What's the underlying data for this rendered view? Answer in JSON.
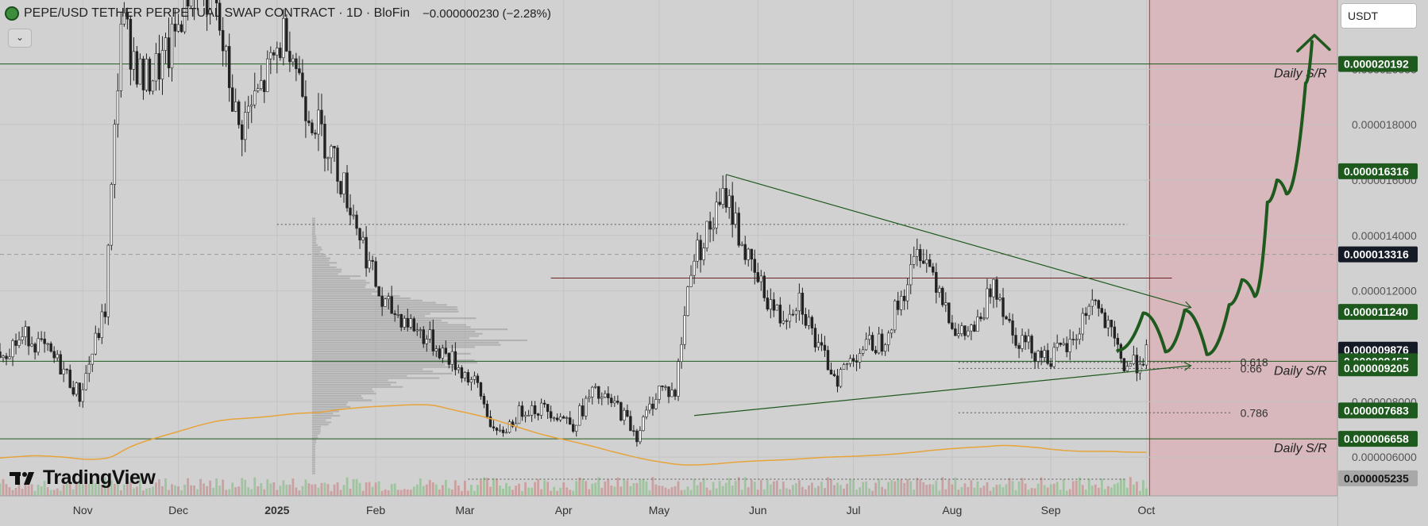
{
  "header": {
    "title": "PEPE/USD TETHER PERPETUAL SWAP CONTRACT · 1D · BloFin",
    "change": "−0.000000230 (−2.28%)",
    "currency": "USDT"
  },
  "branding": {
    "logo_text": "TradingView"
  },
  "colors": {
    "background": "#d1d1d1",
    "forecast_zone": "#d8b8bc",
    "green": "#1e5a1e",
    "green_label": "#1e5a1e",
    "dark_label": "#151b26",
    "gray_label": "#a8a8a8",
    "sma": "#e6a43a",
    "candle": "#222222",
    "red_line": "#e23b3b"
  },
  "chart_data": {
    "type": "candlestick",
    "symbol": "PEPE/USD TETHER PERPETUAL SWAP CONTRACT",
    "timeframe": "1D",
    "exchange": "BloFin",
    "x_axis": {
      "tick_labels": [
        "Nov",
        "Dec",
        "2025",
        "Feb",
        "Mar",
        "Apr",
        "May",
        "Jun",
        "Jul",
        "Aug",
        "Sep",
        "Oct"
      ],
      "tick_dates": [
        "2024-11-01",
        "2024-12-01",
        "2025-01-01",
        "2025-02-01",
        "2025-03-01",
        "2025-04-01",
        "2025-05-01",
        "2025-06-01",
        "2025-07-01",
        "2025-08-01",
        "2025-09-01",
        "2025-10-01"
      ],
      "range": [
        "2024-10-06",
        "2025-11-30"
      ]
    },
    "y_axis": {
      "range": [
        4.6e-06,
        2.25e-05
      ],
      "tick_labels": [
        "0.000006000",
        "0.000008000",
        "0.000012000",
        "0.000014000",
        "0.000016000",
        "0.000018000",
        "0.000020000"
      ],
      "tick_values": [
        6e-06,
        8e-06,
        1.2e-05,
        1.4e-05,
        1.6e-05,
        1.8e-05,
        2e-05
      ]
    },
    "price_labels": [
      {
        "text": "0.000020192",
        "value": 2.0192e-05,
        "style": "green"
      },
      {
        "text": "0.000016316",
        "value": 1.6316e-05,
        "style": "green"
      },
      {
        "text": "0.000013316",
        "value": 1.3316e-05,
        "style": "dark"
      },
      {
        "text": "0.000011240",
        "value": 1.124e-05,
        "style": "green"
      },
      {
        "text": "0.000009876",
        "value": 9.876e-06,
        "style": "dark"
      },
      {
        "text": "0.000009457",
        "value": 9.457e-06,
        "style": "green"
      },
      {
        "text": "0.000009205",
        "value": 9.205e-06,
        "style": "green"
      },
      {
        "text": "0.000007683",
        "value": 7.683e-06,
        "style": "green"
      },
      {
        "text": "0.000006658",
        "value": 6.658e-06,
        "style": "green"
      },
      {
        "text": "0.000005235",
        "value": 5.235e-06,
        "style": "gray"
      }
    ],
    "horizontal_levels": [
      {
        "value": 2.0192e-05,
        "label": "Daily S/R",
        "style": "solid-green"
      },
      {
        "value": 9.457e-06,
        "label": "Daily S/R",
        "style": "solid-green"
      },
      {
        "value": 6.658e-06,
        "label": "Daily S/R",
        "style": "solid-green"
      },
      {
        "value": 1.3316e-05,
        "label": "",
        "style": "dashed-gray"
      },
      {
        "value": 1.246e-05,
        "label": "",
        "style": "solid-maroon"
      }
    ],
    "fib_levels": [
      {
        "label": "0.618",
        "value": 9.42e-06
      },
      {
        "label": "0.66",
        "value": 9.2e-06
      },
      {
        "label": "0.786",
        "value": 7.6e-06
      }
    ],
    "dotted_levels": [
      {
        "value": 1.44e-05,
        "from": "2025-01-01",
        "to": "2025-09-25"
      },
      {
        "value": 5.2e-06,
        "from": "2025-03-02",
        "to": "2025-09-25"
      }
    ],
    "trendlines": [
      {
        "from": [
          "2025-05-22",
          1.62e-05
        ],
        "to": [
          "2025-10-15",
          1.14e-05
        ],
        "arrow": true
      },
      {
        "from": [
          "2025-05-12",
          7.5e-06
        ],
        "to": [
          "2025-10-15",
          9.3e-06
        ],
        "arrow": true
      }
    ],
    "forecast_zone_start": "2025-10-02",
    "forecast_path": [
      [
        "2025-09-22",
        9.85e-06
      ],
      [
        "2025-09-30",
        1.12e-05
      ],
      [
        "2025-10-07",
        9.8e-06
      ],
      [
        "2025-10-13",
        1.13e-05
      ],
      [
        "2025-10-20",
        9.7e-06
      ],
      [
        "2025-10-27",
        1.15e-05
      ],
      [
        "2025-10-31",
        1.24e-05
      ],
      [
        "2025-11-04",
        1.18e-05
      ],
      [
        "2025-11-08",
        1.52e-05
      ],
      [
        "2025-11-11",
        1.6e-05
      ],
      [
        "2025-11-14",
        1.55e-05
      ],
      [
        "2025-11-20",
        1.95e-05
      ],
      [
        "2025-11-22",
        2.1e-05
      ]
    ],
    "forecast_arrow_tip": [
      "2025-11-22",
      2.05e-05
    ],
    "price_path": [
      [
        "2024-10-06",
        9.8e-06
      ],
      [
        "2024-10-15",
        1.04e-05
      ],
      [
        "2024-10-25",
        9.3e-06
      ],
      [
        "2024-10-31",
        8.2e-06
      ],
      [
        "2024-11-08",
        1.13e-05
      ],
      [
        "2024-11-13",
        2.18e-05
      ],
      [
        "2024-11-20",
        1.95e-05
      ],
      [
        "2024-11-28",
        2.05e-05
      ],
      [
        "2024-12-05",
        2.32e-05
      ],
      [
        "2024-12-12",
        2.25e-05
      ],
      [
        "2024-12-20",
        1.78e-05
      ],
      [
        "2024-12-28",
        1.95e-05
      ],
      [
        "2025-01-04",
        2.15e-05
      ],
      [
        "2025-01-10",
        1.88e-05
      ],
      [
        "2025-01-18",
        1.7e-05
      ],
      [
        "2025-01-25",
        1.48e-05
      ],
      [
        "2025-02-03",
        1.15e-05
      ],
      [
        "2025-02-10",
        1.1e-05
      ],
      [
        "2025-02-18",
        1.02e-05
      ],
      [
        "2025-02-25",
        9.5e-06
      ],
      [
        "2025-03-05",
        8.5e-06
      ],
      [
        "2025-03-11",
        6.7e-06
      ],
      [
        "2025-03-20",
        7.8e-06
      ],
      [
        "2025-03-28",
        7.7e-06
      ],
      [
        "2025-04-04",
        7.2e-06
      ],
      [
        "2025-04-10",
        8.3e-06
      ],
      [
        "2025-04-18",
        7.8e-06
      ],
      [
        "2025-04-24",
        6.8e-06
      ],
      [
        "2025-05-01",
        8.5e-06
      ],
      [
        "2025-05-06",
        8.3e-06
      ],
      [
        "2025-05-11",
        1.3e-05
      ],
      [
        "2025-05-18",
        1.45e-05
      ],
      [
        "2025-05-22",
        1.55e-05
      ],
      [
        "2025-05-30",
        1.27e-05
      ],
      [
        "2025-06-08",
        1.1e-05
      ],
      [
        "2025-06-14",
        1.18e-05
      ],
      [
        "2025-06-20",
        9.85e-06
      ],
      [
        "2025-06-26",
        8.9e-06
      ],
      [
        "2025-07-03",
        9.9e-06
      ],
      [
        "2025-07-10",
        1.02e-05
      ],
      [
        "2025-07-17",
        1.2e-05
      ],
      [
        "2025-07-22",
        1.36e-05
      ],
      [
        "2025-07-28",
        1.22e-05
      ],
      [
        "2025-08-03",
        1.03e-05
      ],
      [
        "2025-08-10",
        1.08e-05
      ],
      [
        "2025-08-14",
        1.25e-05
      ],
      [
        "2025-08-20",
        1.05e-05
      ],
      [
        "2025-08-27",
        9.85e-06
      ],
      [
        "2025-09-01",
        9.6e-06
      ],
      [
        "2025-09-08",
        1.01e-05
      ],
      [
        "2025-09-14",
        1.18e-05
      ],
      [
        "2025-09-20",
        1.03e-05
      ],
      [
        "2025-09-24",
        9.3e-06
      ],
      [
        "2025-09-28",
        9.4e-06
      ],
      [
        "2025-10-01",
        9.8e-06
      ]
    ]
  }
}
